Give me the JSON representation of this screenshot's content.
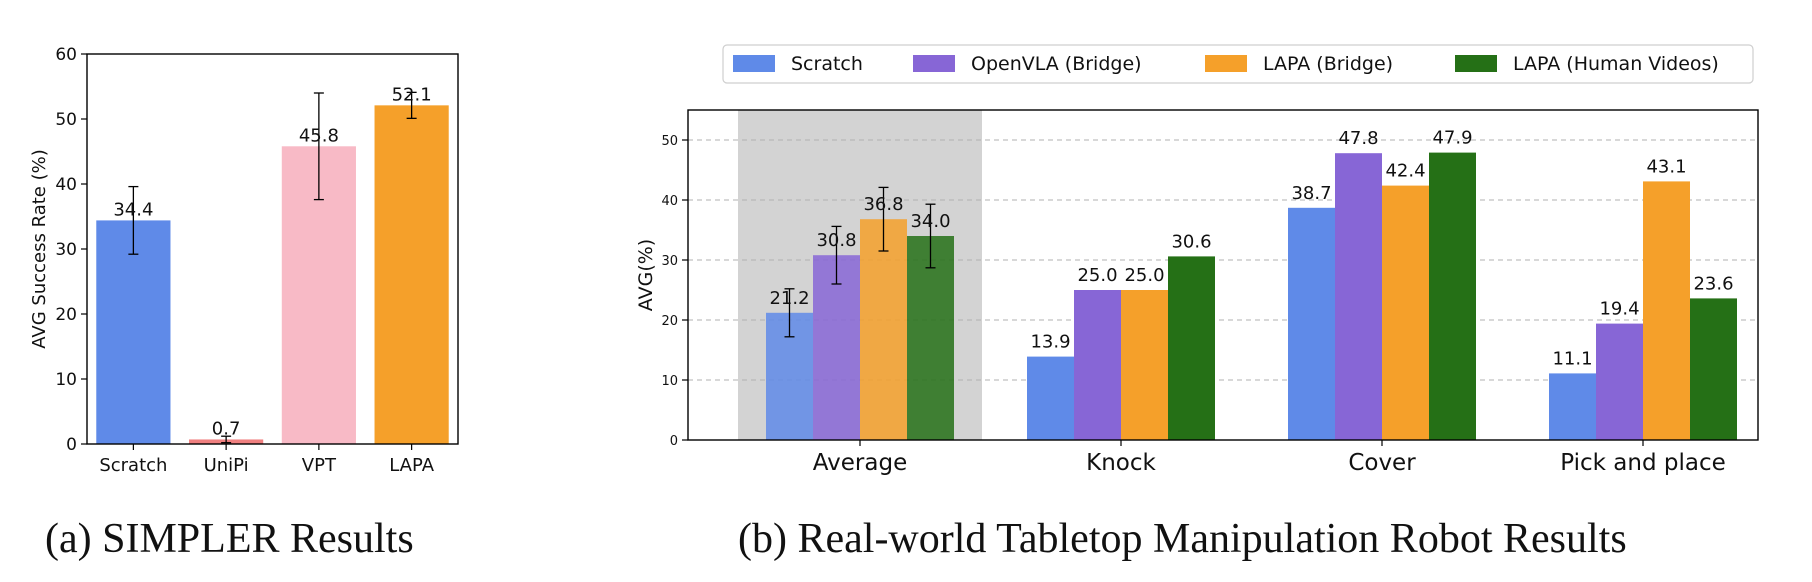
{
  "captions": {
    "a": "(a) SIMPLER Results",
    "b": "(b) Real-world Tabletop Manipulation Robot Results"
  },
  "chart_data": [
    {
      "type": "bar",
      "title": "",
      "xlabel": "",
      "ylabel": "AVG Success Rate (%)",
      "ylim": [
        0,
        60
      ],
      "yticks": [
        0,
        10,
        20,
        30,
        40,
        50,
        60
      ],
      "grid": false,
      "categories": [
        "Scratch",
        "UniPi",
        "VPT",
        "LAPA"
      ],
      "values": [
        34.4,
        0.7,
        45.8,
        52.1
      ],
      "error": [
        5.2,
        0.5,
        8.2,
        2.0
      ],
      "data_labels": [
        "34.4",
        "0.7",
        "45.8",
        "52.1"
      ],
      "colors": [
        "#5f8ae8",
        "#f08080",
        "#f8bac6",
        "#f5a02a"
      ]
    },
    {
      "type": "bar",
      "title": "",
      "xlabel": "",
      "ylabel": "AVG(%)",
      "ylim": [
        0,
        55
      ],
      "yticks": [
        0,
        10,
        20,
        30,
        40,
        50
      ],
      "grid": true,
      "legend_position": "top",
      "categories": [
        "Average",
        "Knock",
        "Cover",
        "Pick and place"
      ],
      "highlighted_category": "Average",
      "series": [
        {
          "name": "Scratch",
          "color": "#5f8ae8",
          "values": [
            21.2,
            13.9,
            38.7,
            11.1
          ],
          "data_labels": [
            "21.2",
            "13.9",
            "38.7",
            "11.1"
          ],
          "error": [
            4.0,
            null,
            null,
            null
          ]
        },
        {
          "name": "OpenVLA (Bridge)",
          "color": "#8766d6",
          "values": [
            30.8,
            25.0,
            47.8,
            19.4
          ],
          "data_labels": [
            "30.8",
            "25.0",
            "47.8",
            "19.4"
          ],
          "error": [
            4.8,
            null,
            null,
            null
          ]
        },
        {
          "name": "LAPA (Bridge)",
          "color": "#f5a02a",
          "values": [
            36.8,
            25.0,
            42.4,
            43.1
          ],
          "data_labels": [
            "36.8",
            "25.0",
            "42.4",
            "43.1"
          ],
          "error": [
            5.3,
            null,
            null,
            null
          ]
        },
        {
          "name": "LAPA (Human Videos)",
          "color": "#257016",
          "values": [
            34.0,
            30.6,
            47.9,
            23.6
          ],
          "data_labels": [
            "34.0",
            "30.6",
            "47.9",
            "23.6"
          ],
          "error": [
            5.3,
            null,
            null,
            null
          ]
        }
      ]
    }
  ]
}
